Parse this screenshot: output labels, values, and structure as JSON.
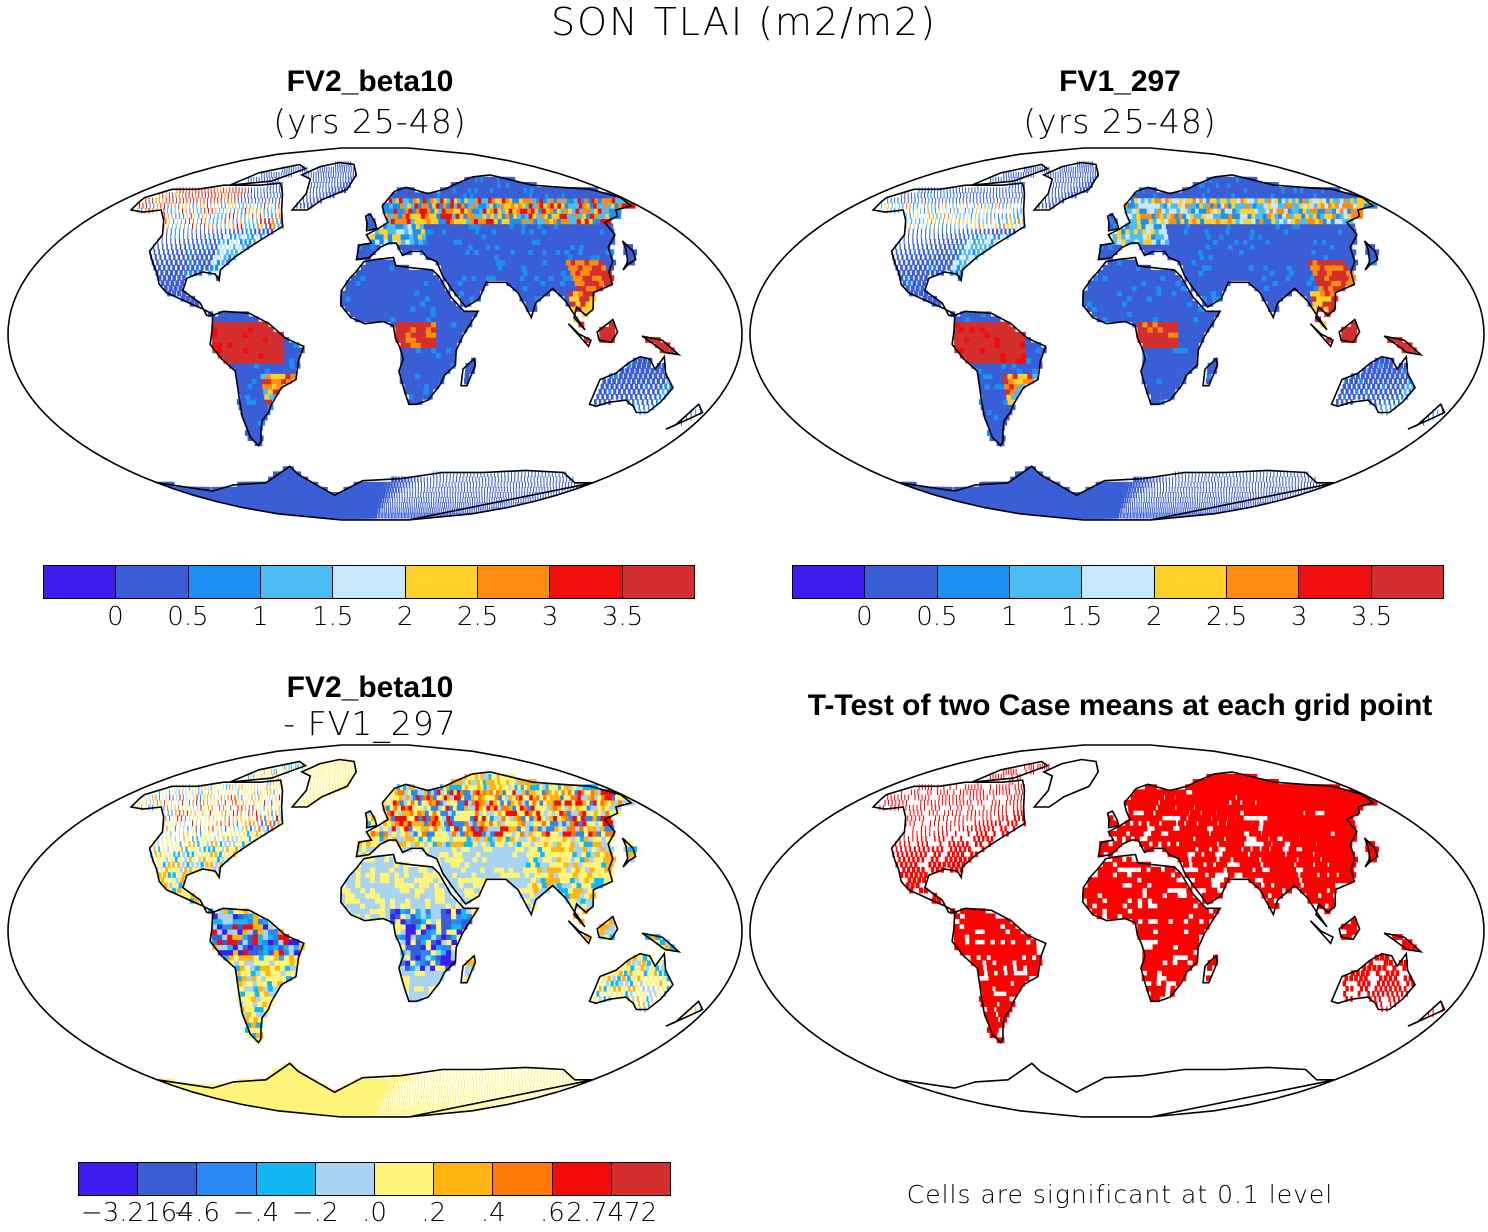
{
  "figure": {
    "title": "SON TLAI (m2/m2)"
  },
  "panels": [
    {
      "id": "fv2",
      "title": "FV2_beta10",
      "subtitle": "(yrs 25-48)"
    },
    {
      "id": "fv1",
      "title": "FV1_297",
      "subtitle": "(yrs 25-48)"
    },
    {
      "id": "diff",
      "title": "FV2_beta10",
      "subtitle": "- FV1_297"
    },
    {
      "id": "ttest",
      "title": "T-Test of two Case means at each grid point",
      "subtitle": ""
    }
  ],
  "colorbars": {
    "tlai": {
      "colors": [
        "#3d1cf0",
        "#3a5ed6",
        "#1b8ff2",
        "#4bbdf4",
        "#c8e7f8",
        "#ffd027",
        "#ff8c10",
        "#f00e0e",
        "#d42e2e"
      ],
      "labels": [
        "0",
        "0.5",
        "1",
        "1.5",
        "2",
        "2.5",
        "3",
        "3.5"
      ]
    },
    "diff": {
      "colors": [
        "#3d1cf0",
        "#3a5ed6",
        "#2a88f2",
        "#12b8f4",
        "#a8d4f2",
        "#fff47a",
        "#ffb412",
        "#ff7a08",
        "#f50a0a",
        "#d42e2e"
      ],
      "labels": [
        "-3.2164",
        "-.6",
        "-.4",
        "-.2",
        ".0",
        ".2",
        ".4",
        ".6",
        "2.7472"
      ]
    }
  },
  "ttest_note": "Cells are significant at 0.1 level",
  "map_colors": {
    "outline": "#000000",
    "significant": "#ff0000",
    "land_fv": "#3a5ed6",
    "land_diff": "#fff47a"
  }
}
